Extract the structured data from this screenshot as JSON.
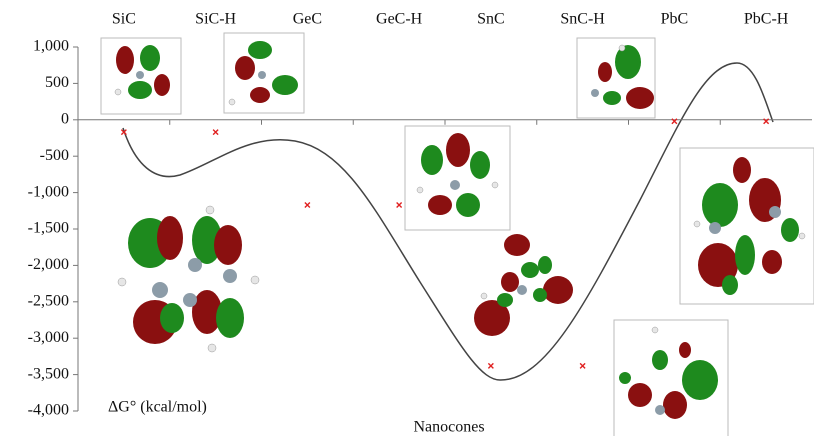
{
  "chart_data": {
    "type": "scatter",
    "categories": [
      "SiC",
      "SiC-H",
      "GeC",
      "GeC-H",
      "SnC",
      "SnC-H",
      "PbC",
      "PbC-H"
    ],
    "values": [
      -170,
      -170,
      -1170,
      -1170,
      -3380,
      -3380,
      -20,
      -20
    ],
    "color": "#e02020",
    "x_label": "Nanocones",
    "y_label": "ΔG° (kcal/mol)",
    "ylim": [
      -4000,
      1000
    ],
    "yticks": [
      {
        "value": 1000,
        "label": "1,000"
      },
      500,
      0,
      -500,
      {
        "value": -1000,
        "label": "-1,000"
      },
      {
        "value": -1500,
        "label": "-1,500"
      },
      {
        "value": -2000,
        "label": "-2,000"
      },
      {
        "value": -2500,
        "label": "-2,500"
      },
      {
        "value": -3000,
        "label": "-3,000"
      },
      {
        "value": -3500,
        "label": "-3,500"
      },
      {
        "value": -4000,
        "label": "-4,000"
      }
    ]
  }
}
